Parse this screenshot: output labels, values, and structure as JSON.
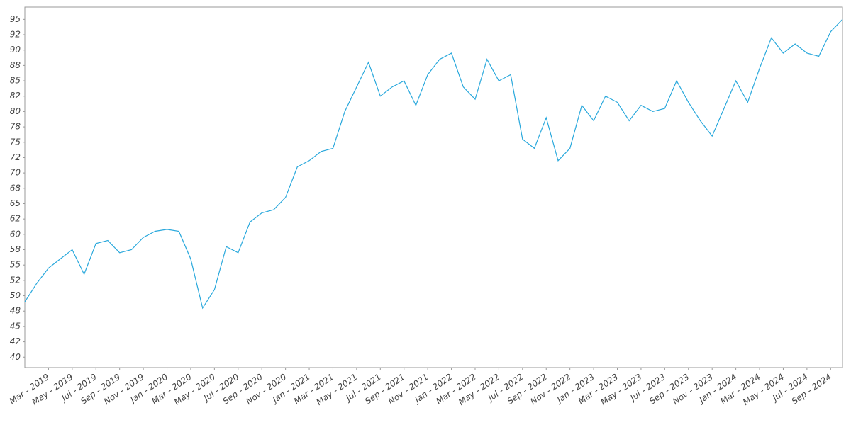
{
  "chart_data": {
    "type": "line",
    "color": "#29a8dc",
    "x": [
      "2019-01",
      "2019-02",
      "2019-03",
      "2019-04",
      "2019-05",
      "2019-06",
      "2019-07",
      "2019-08",
      "2019-09",
      "2019-10",
      "2019-11",
      "2019-12",
      "2020-01",
      "2020-02",
      "2020-03",
      "2020-04",
      "2020-05",
      "2020-06",
      "2020-07",
      "2020-08",
      "2020-09",
      "2020-10",
      "2020-11",
      "2020-12",
      "2021-01",
      "2021-02",
      "2021-03",
      "2021-04",
      "2021-05",
      "2021-06",
      "2021-07",
      "2021-08",
      "2021-09",
      "2021-10",
      "2021-11",
      "2021-12",
      "2022-01",
      "2022-02",
      "2022-03",
      "2022-04",
      "2022-05",
      "2022-06",
      "2022-07",
      "2022-08",
      "2022-09",
      "2022-10",
      "2022-11",
      "2022-12",
      "2023-01",
      "2023-02",
      "2023-03",
      "2023-04",
      "2023-05",
      "2023-06",
      "2023-07",
      "2023-08",
      "2023-09",
      "2023-10",
      "2023-11",
      "2023-12",
      "2024-01",
      "2024-02",
      "2024-03",
      "2024-04",
      "2024-05",
      "2024-06",
      "2024-07",
      "2024-08",
      "2024-09",
      "2024-10"
    ],
    "values": [
      49,
      52,
      54.5,
      56,
      57.5,
      53.5,
      58.5,
      59,
      57,
      57.5,
      59.5,
      60.5,
      60.8,
      60.5,
      56,
      48,
      51,
      58,
      57,
      62,
      63.5,
      64,
      66,
      71,
      72,
      73.5,
      74,
      80,
      84,
      88,
      82.5,
      84,
      85,
      81,
      86,
      88.5,
      89.5,
      84,
      82,
      88.5,
      85,
      86,
      75.5,
      74,
      79,
      72,
      74,
      81,
      78.5,
      82.5,
      81.5,
      78.5,
      81,
      80,
      80.5,
      85,
      81.5,
      78.5,
      76,
      80.5,
      85,
      81.5,
      87,
      92,
      89.5,
      91,
      89.5,
      89,
      93,
      95
    ],
    "xlim": [
      "2019-01",
      "2024-10"
    ],
    "xticks": [
      {
        "value": "2019-03",
        "label": "Mar - 2019"
      },
      {
        "value": "2019-05",
        "label": "May - 2019"
      },
      {
        "value": "2019-07",
        "label": "Jul - 2019"
      },
      {
        "value": "2019-09",
        "label": "Sep - 2019"
      },
      {
        "value": "2019-11",
        "label": "Nov - 2019"
      },
      {
        "value": "2020-01",
        "label": "Jan - 2020"
      },
      {
        "value": "2020-03",
        "label": "Mar - 2020"
      },
      {
        "value": "2020-05",
        "label": "May - 2020"
      },
      {
        "value": "2020-07",
        "label": "Jul - 2020"
      },
      {
        "value": "2020-09",
        "label": "Sep - 2020"
      },
      {
        "value": "2020-11",
        "label": "Nov - 2020"
      },
      {
        "value": "2021-01",
        "label": "Jan - 2021"
      },
      {
        "value": "2021-03",
        "label": "Mar - 2021"
      },
      {
        "value": "2021-05",
        "label": "May - 2021"
      },
      {
        "value": "2021-07",
        "label": "Jul - 2021"
      },
      {
        "value": "2021-09",
        "label": "Sep - 2021"
      },
      {
        "value": "2021-11",
        "label": "Nov - 2021"
      },
      {
        "value": "2022-01",
        "label": "Jan - 2022"
      },
      {
        "value": "2022-03",
        "label": "Mar - 2022"
      },
      {
        "value": "2022-05",
        "label": "May - 2022"
      },
      {
        "value": "2022-07",
        "label": "Jul - 2022"
      },
      {
        "value": "2022-09",
        "label": "Sep - 2022"
      },
      {
        "value": "2022-11",
        "label": "Nov - 2022"
      },
      {
        "value": "2023-01",
        "label": "Jan - 2023"
      },
      {
        "value": "2023-03",
        "label": "Mar - 2023"
      },
      {
        "value": "2023-05",
        "label": "May - 2023"
      },
      {
        "value": "2023-07",
        "label": "Jul - 2023"
      },
      {
        "value": "2023-09",
        "label": "Sep - 2023"
      },
      {
        "value": "2023-11",
        "label": "Nov - 2023"
      },
      {
        "value": "2024-01",
        "label": "Jan - 2024"
      },
      {
        "value": "2024-03",
        "label": "Mar - 2024"
      },
      {
        "value": "2024-05",
        "label": "May - 2024"
      },
      {
        "value": "2024-07",
        "label": "Jul - 2024"
      },
      {
        "value": "2024-09",
        "label": "Sep - 2024"
      }
    ],
    "ylim": [
      38.3,
      97
    ],
    "yticks": [
      40,
      {
        "value": 42.5,
        "label": "42"
      },
      45,
      {
        "value": 47.5,
        "label": "48"
      },
      50,
      {
        "value": 52.5,
        "label": "52"
      },
      55,
      {
        "value": 57.5,
        "label": "58"
      },
      60,
      {
        "value": 62.5,
        "label": "62"
      },
      65,
      {
        "value": 67.5,
        "label": "68"
      },
      70,
      {
        "value": 72.5,
        "label": "72"
      },
      75,
      {
        "value": 77.5,
        "label": "78"
      },
      80,
      {
        "value": 82.5,
        "label": "82"
      },
      85,
      {
        "value": 87.5,
        "label": "88"
      },
      90,
      {
        "value": 92.5,
        "label": "92"
      },
      95
    ]
  }
}
